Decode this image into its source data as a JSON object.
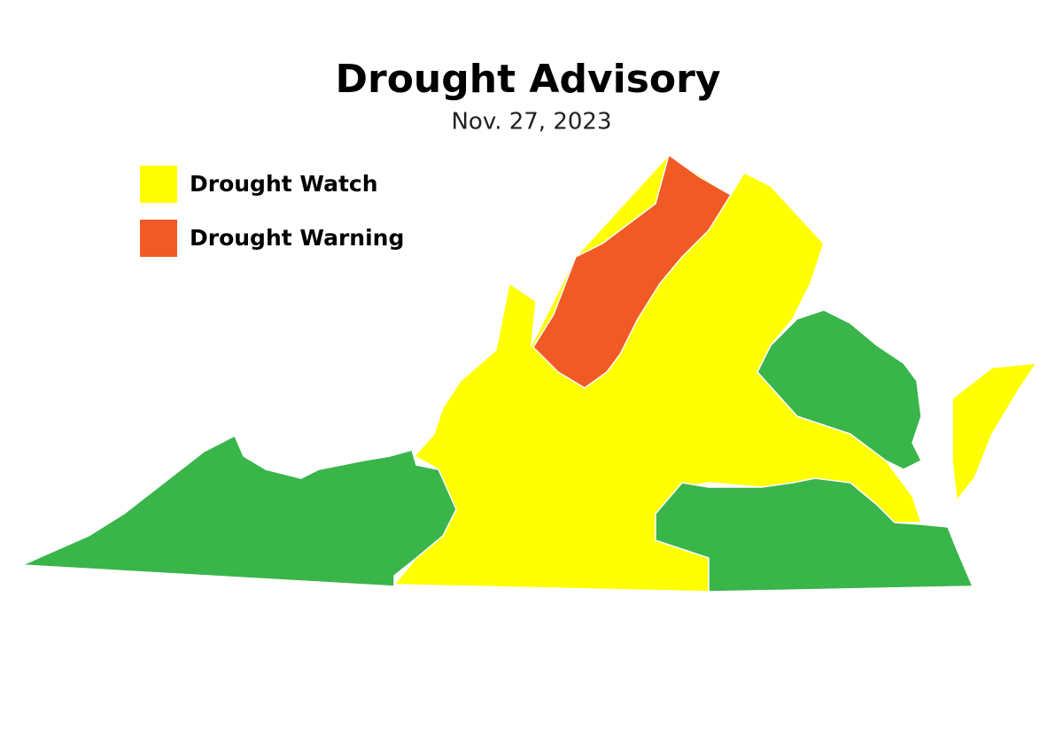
{
  "header": {
    "title": "Drought Advisory",
    "date": "Nov. 27, 2023"
  },
  "legend": [
    {
      "label": "Drought Watch",
      "color": "#ffff00"
    },
    {
      "label": "Drought Warning",
      "color": "#f15a24"
    }
  ]
}
